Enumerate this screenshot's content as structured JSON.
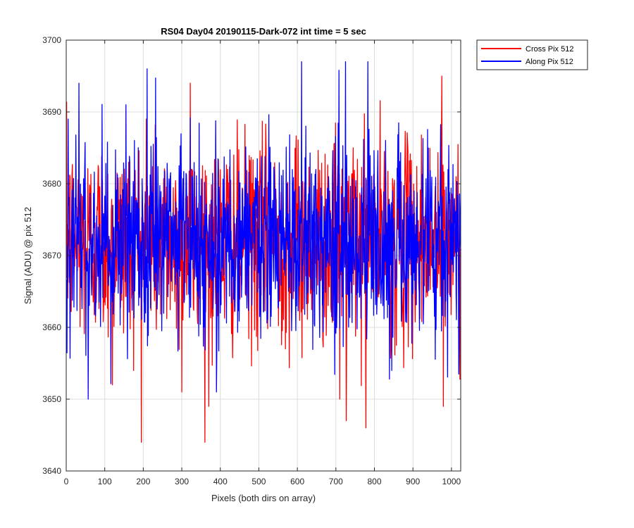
{
  "chart_data": {
    "type": "line",
    "title": "RS04 Day04 20190115-Dark-072 int time = 5 sec",
    "xlabel": "Pixels (both dirs on array)",
    "ylabel": "Signal (ADU) @ pix 512",
    "xlim": [
      0,
      1024
    ],
    "ylim": [
      3640,
      3700
    ],
    "x_ticks": [
      0,
      100,
      200,
      300,
      400,
      500,
      600,
      700,
      800,
      900,
      1000
    ],
    "y_ticks": [
      3640,
      3650,
      3660,
      3670,
      3680,
      3690,
      3700
    ],
    "grid": true,
    "legend_position": "outside-top-right",
    "noise": {
      "mean": 3672,
      "typical_range": [
        3660,
        3684
      ]
    },
    "series": [
      {
        "name": "Cross Pix 512",
        "color": "#ff0000",
        "x_range": [
          1,
          1024
        ],
        "notable_points": [
          {
            "x": 322,
            "y": 3694
          },
          {
            "x": 208,
            "y": 3689
          },
          {
            "x": 370,
            "y": 3649
          },
          {
            "x": 727,
            "y": 3647
          },
          {
            "x": 778,
            "y": 3646
          },
          {
            "x": 710,
            "y": 3650
          },
          {
            "x": 975,
            "y": 3695
          },
          {
            "x": 979,
            "y": 3649
          },
          {
            "x": 300,
            "y": 3651
          },
          {
            "x": 120,
            "y": 3652
          }
        ]
      },
      {
        "name": "Along Pix 512",
        "color": "#0000ff",
        "x_range": [
          1,
          1024
        ],
        "notable_points": [
          {
            "x": 33,
            "y": 3694
          },
          {
            "x": 210,
            "y": 3696
          },
          {
            "x": 57,
            "y": 3650
          },
          {
            "x": 725,
            "y": 3697
          },
          {
            "x": 783,
            "y": 3697
          },
          {
            "x": 5,
            "y": 3689
          },
          {
            "x": 155,
            "y": 3691
          },
          {
            "x": 390,
            "y": 3651
          },
          {
            "x": 1020,
            "y": 3657
          }
        ]
      }
    ]
  }
}
